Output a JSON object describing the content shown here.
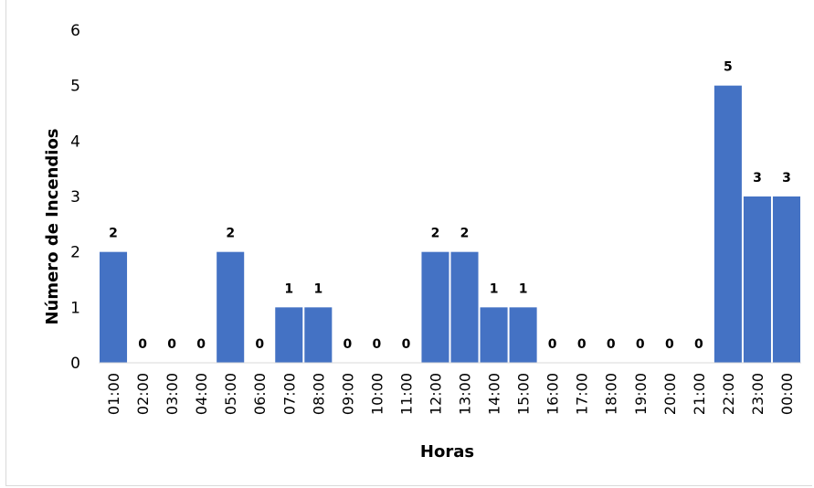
{
  "chart_data": {
    "type": "bar",
    "title": "",
    "xlabel": "Horas",
    "ylabel": "Número de Incendios",
    "ylim": [
      0,
      6
    ],
    "yticks": [
      "0",
      "1",
      "2",
      "3",
      "4",
      "5",
      "6"
    ],
    "grid": false,
    "legend": "none",
    "bar_color": "#4472C4",
    "categories": [
      "01:00",
      "02:00",
      "03:00",
      "04:00",
      "05:00",
      "06:00",
      "07:00",
      "08:00",
      "09:00",
      "10:00",
      "11:00",
      "12:00",
      "13:00",
      "14:00",
      "15:00",
      "16:00",
      "17:00",
      "18:00",
      "19:00",
      "20:00",
      "21:00",
      "22:00",
      "23:00",
      "00:00"
    ],
    "values": [
      2,
      0,
      0,
      0,
      2,
      0,
      1,
      1,
      0,
      0,
      0,
      2,
      2,
      1,
      1,
      0,
      0,
      0,
      0,
      0,
      0,
      5,
      3,
      3
    ]
  }
}
